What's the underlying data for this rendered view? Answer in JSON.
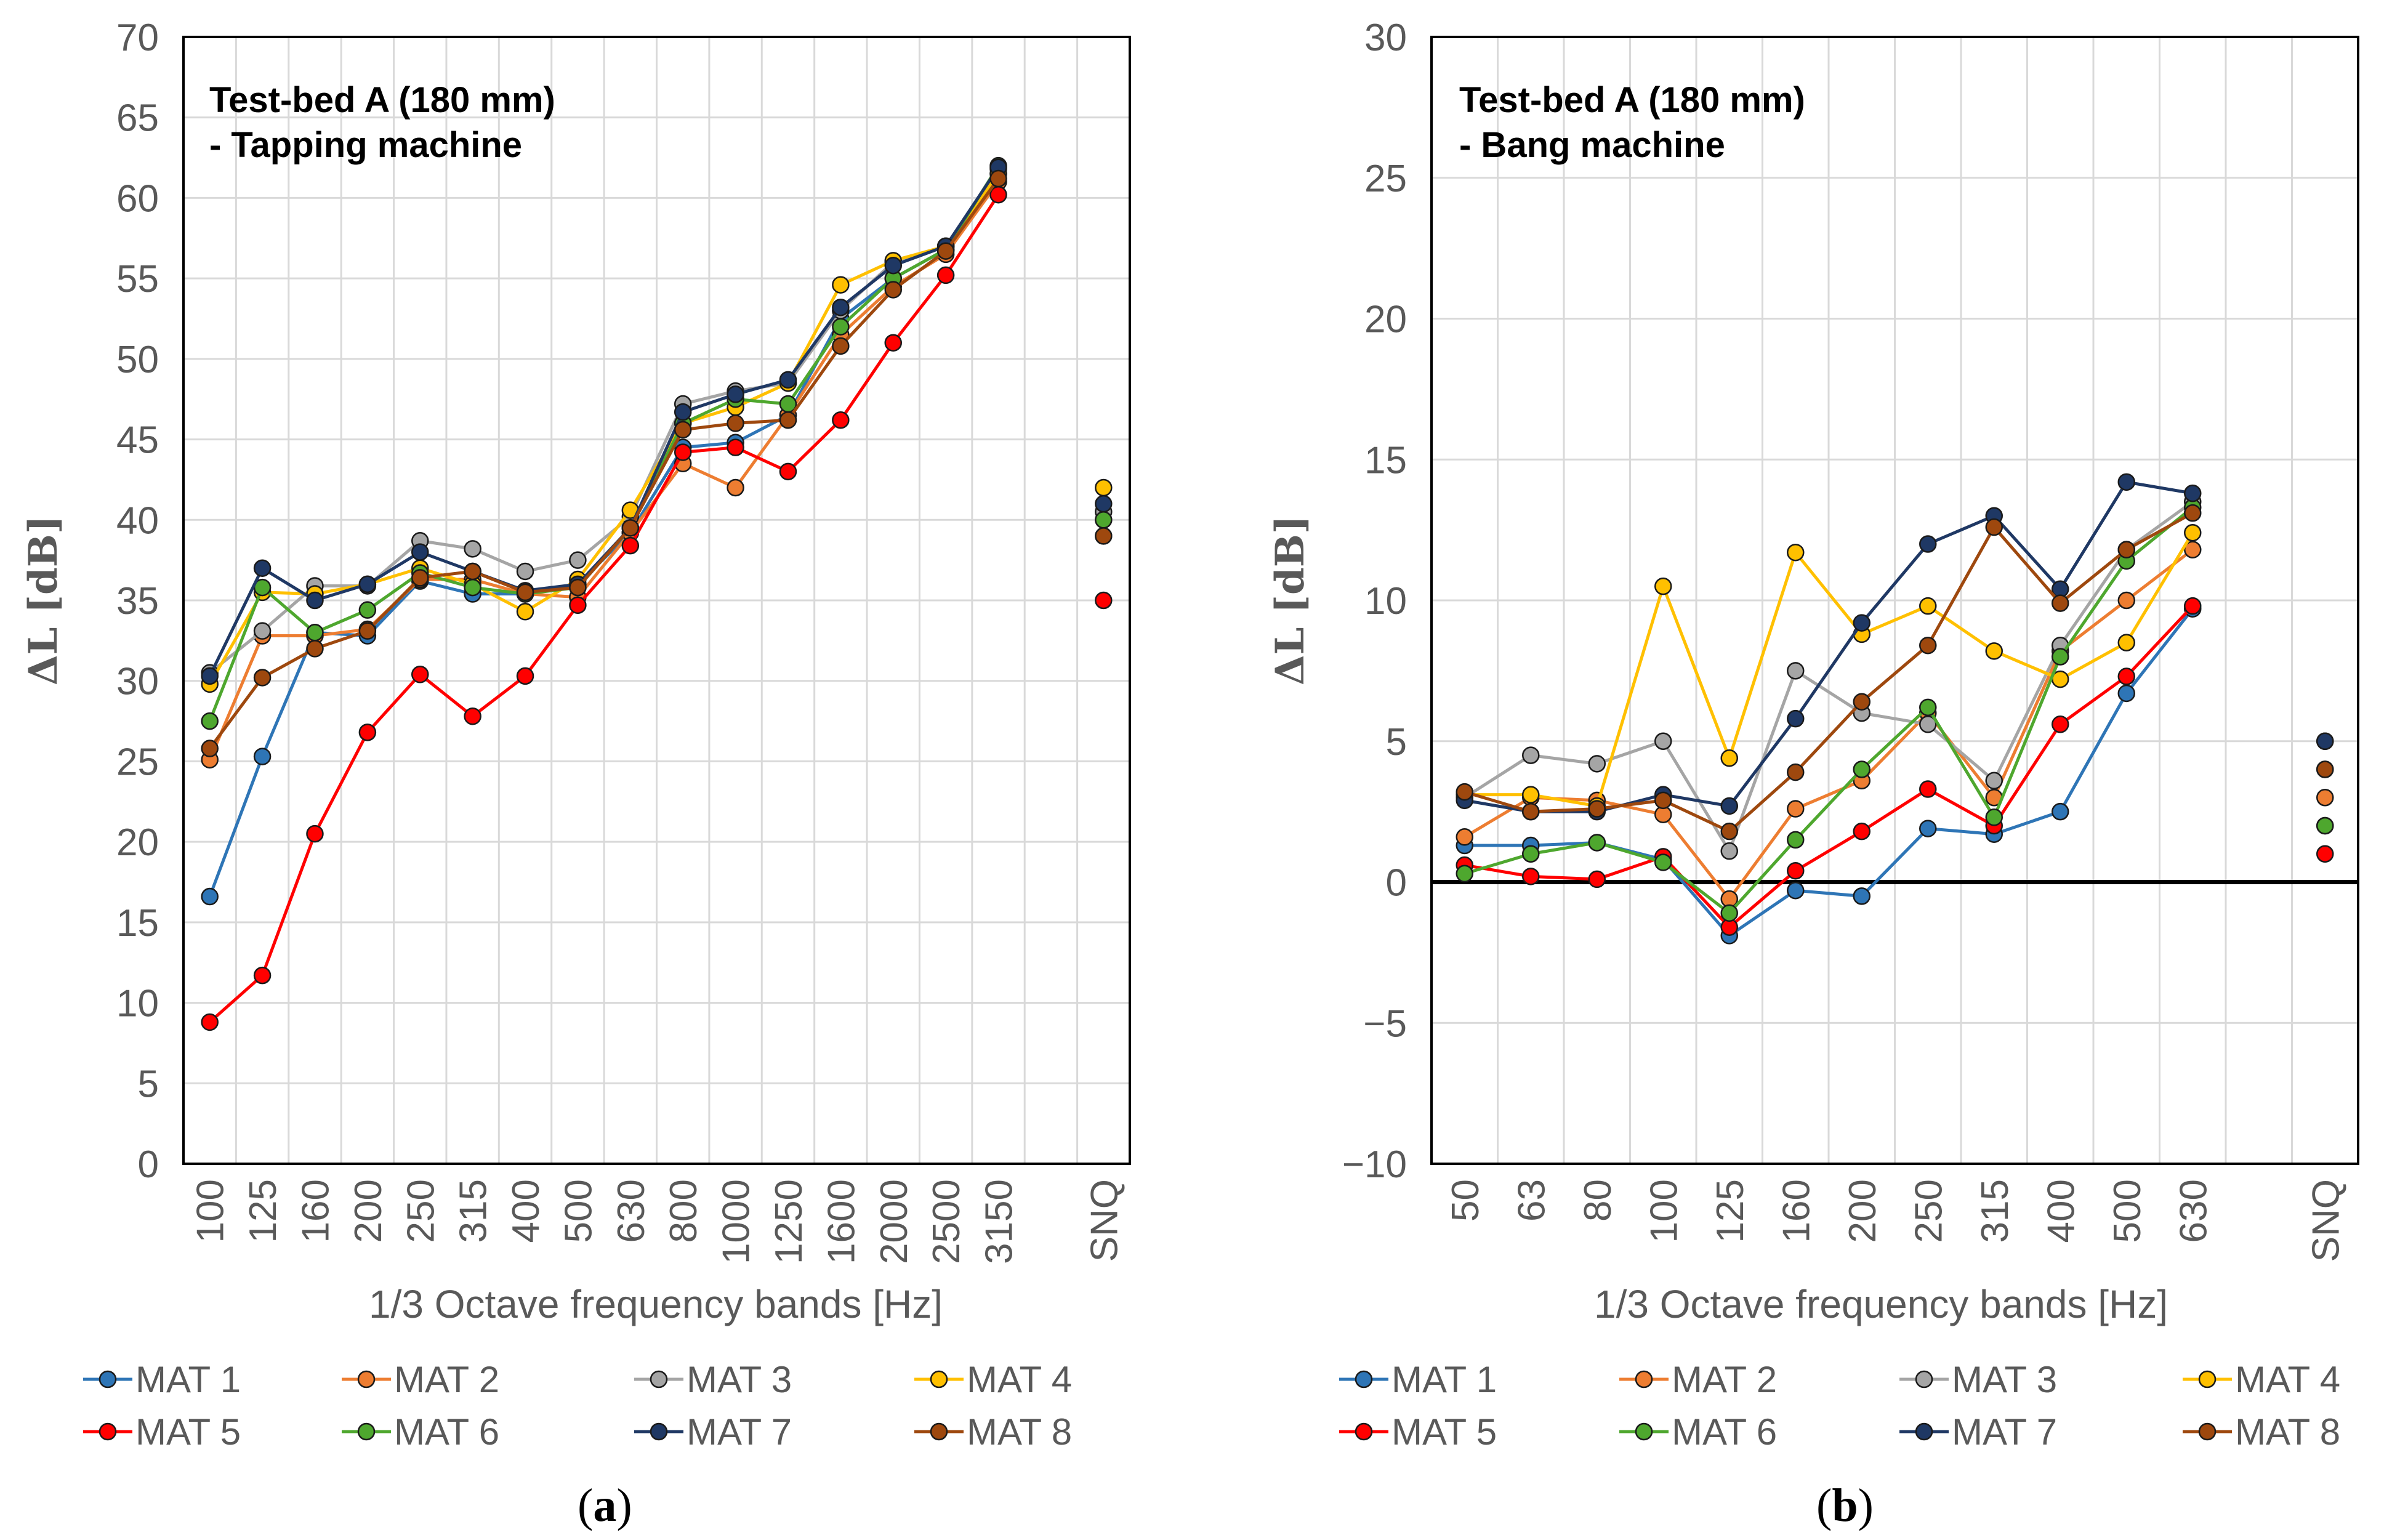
{
  "chart_data": [
    {
      "type": "line",
      "panel_label": "a",
      "title_line1": "Test-bed A (180 mm)",
      "title_line2": "- Tapping machine",
      "ylabel": "ΔL [dB]",
      "xlabel": "1/3 Octave frequency bands [Hz]",
      "ylim": [
        0,
        70
      ],
      "ytick_step": 5,
      "yticks": [
        "0",
        "5",
        "10",
        "15",
        "20",
        "25",
        "30",
        "35",
        "40",
        "45",
        "50",
        "55",
        "60",
        "65",
        "70"
      ],
      "categories": [
        "100",
        "125",
        "160",
        "200",
        "250",
        "315",
        "400",
        "500",
        "630",
        "800",
        "1000",
        "1250",
        "1600",
        "2000",
        "2500",
        "3150"
      ],
      "snq_label": "SNQ",
      "series": [
        {
          "name": "MAT 1",
          "color": "#2E75B6",
          "values": [
            16.6,
            25.3,
            33.0,
            32.8,
            36.2,
            35.4,
            35.4,
            36.0,
            39.2,
            44.5,
            44.8,
            46.5,
            52.5,
            55.0,
            56.8,
            61.5
          ],
          "snq": 40.0
        },
        {
          "name": "MAT 2",
          "color": "#ED7D31",
          "values": [
            25.1,
            32.8,
            32.8,
            33.2,
            36.3,
            36.3,
            35.4,
            35.2,
            39.2,
            43.5,
            42.0,
            46.5,
            51.5,
            54.5,
            56.5,
            61.0
          ],
          "snq": 39.0
        },
        {
          "name": "MAT 3",
          "color": "#A5A5A5",
          "values": [
            30.5,
            33.1,
            35.9,
            35.9,
            38.7,
            38.2,
            36.8,
            37.5,
            40.2,
            47.2,
            48.0,
            48.5,
            53.0,
            56.0,
            57.0,
            61.8
          ],
          "snq": 40.5
        },
        {
          "name": "MAT 4",
          "color": "#FFC000",
          "values": [
            29.8,
            35.5,
            35.4,
            36.0,
            37.0,
            36.0,
            34.3,
            36.3,
            40.6,
            46.0,
            47.0,
            48.5,
            54.6,
            56.1,
            57.0,
            61.5
          ],
          "snq": 42.0
        },
        {
          "name": "MAT 5",
          "color": "#FF0000",
          "values": [
            8.8,
            11.7,
            20.5,
            26.8,
            30.4,
            27.8,
            30.3,
            34.7,
            38.4,
            44.2,
            44.5,
            43.0,
            46.2,
            51.0,
            55.2,
            60.2
          ],
          "snq": 35.0
        },
        {
          "name": "MAT 6",
          "color": "#4EA72E",
          "values": [
            27.5,
            35.8,
            33.0,
            34.4,
            36.7,
            35.8,
            35.4,
            35.8,
            39.5,
            46.0,
            47.5,
            47.2,
            52.0,
            55.0,
            56.8,
            62.0
          ],
          "snq": 40.0
        },
        {
          "name": "MAT 7",
          "color": "#1F3864",
          "values": [
            30.3,
            37.0,
            35.0,
            36.0,
            38.0,
            36.8,
            35.6,
            36.0,
            39.5,
            46.7,
            47.8,
            48.7,
            53.2,
            55.8,
            57.0,
            61.9
          ],
          "snq": 41.0
        },
        {
          "name": "MAT 8",
          "color": "#9E480E",
          "values": [
            25.8,
            30.2,
            32.0,
            33.1,
            36.4,
            36.8,
            35.5,
            35.8,
            39.5,
            45.6,
            46.0,
            46.2,
            50.8,
            54.3,
            56.7,
            61.2
          ],
          "snq": 39.0
        }
      ]
    },
    {
      "type": "line",
      "panel_label": "b",
      "title_line1": "Test-bed A (180 mm)",
      "title_line2": "- Bang machine",
      "ylabel": "ΔL [dB]",
      "xlabel": "1/3 Octave frequency bands [Hz]",
      "ylim": [
        -10,
        30
      ],
      "ytick_step": 5,
      "yticks": [
        "−10",
        "−5",
        "0",
        "5",
        "10",
        "15",
        "20",
        "25",
        "30"
      ],
      "zero_line": true,
      "categories": [
        "50",
        "63",
        "80",
        "100",
        "125",
        "160",
        "200",
        "250",
        "315",
        "400",
        "500",
        "630"
      ],
      "snq_label": "SNQ",
      "series": [
        {
          "name": "MAT 1",
          "color": "#2E75B6",
          "values": [
            1.3,
            1.3,
            1.4,
            0.8,
            -1.9,
            -0.3,
            -0.5,
            1.9,
            1.7,
            2.5,
            6.7,
            9.7
          ],
          "snq": 2.0
        },
        {
          "name": "MAT 2",
          "color": "#ED7D31",
          "values": [
            1.6,
            3.0,
            2.9,
            2.4,
            -0.6,
            2.6,
            3.6,
            6.0,
            3.0,
            8.2,
            10.0,
            11.8
          ],
          "snq": 3.0
        },
        {
          "name": "MAT 3",
          "color": "#A5A5A5",
          "values": [
            3.0,
            4.5,
            4.2,
            5.0,
            1.1,
            7.5,
            6.0,
            5.6,
            3.6,
            8.4,
            11.8,
            13.5
          ],
          "snq": 4.0
        },
        {
          "name": "MAT 4",
          "color": "#FFC000",
          "values": [
            3.1,
            3.1,
            2.7,
            10.5,
            4.4,
            11.7,
            8.8,
            9.8,
            8.2,
            7.2,
            8.5,
            12.4
          ],
          "snq": 5.0
        },
        {
          "name": "MAT 5",
          "color": "#FF0000",
          "values": [
            0.6,
            0.2,
            0.1,
            0.9,
            -1.6,
            0.4,
            1.8,
            3.3,
            2.0,
            5.6,
            7.3,
            9.8
          ],
          "snq": 1.0
        },
        {
          "name": "MAT 6",
          "color": "#4EA72E",
          "values": [
            0.3,
            1.0,
            1.4,
            0.7,
            -1.1,
            1.5,
            4.0,
            6.2,
            2.3,
            8.0,
            11.4,
            13.3
          ],
          "snq": 2.0
        },
        {
          "name": "MAT 7",
          "color": "#1F3864",
          "values": [
            2.9,
            2.5,
            2.5,
            3.1,
            2.7,
            5.8,
            9.2,
            12.0,
            13.0,
            10.4,
            14.2,
            13.8
          ],
          "snq": 5.0
        },
        {
          "name": "MAT 8",
          "color": "#9E480E",
          "values": [
            3.2,
            2.5,
            2.6,
            2.9,
            1.8,
            3.9,
            6.4,
            8.4,
            12.6,
            9.9,
            11.8,
            13.1
          ],
          "snq": 4.0
        }
      ]
    }
  ]
}
